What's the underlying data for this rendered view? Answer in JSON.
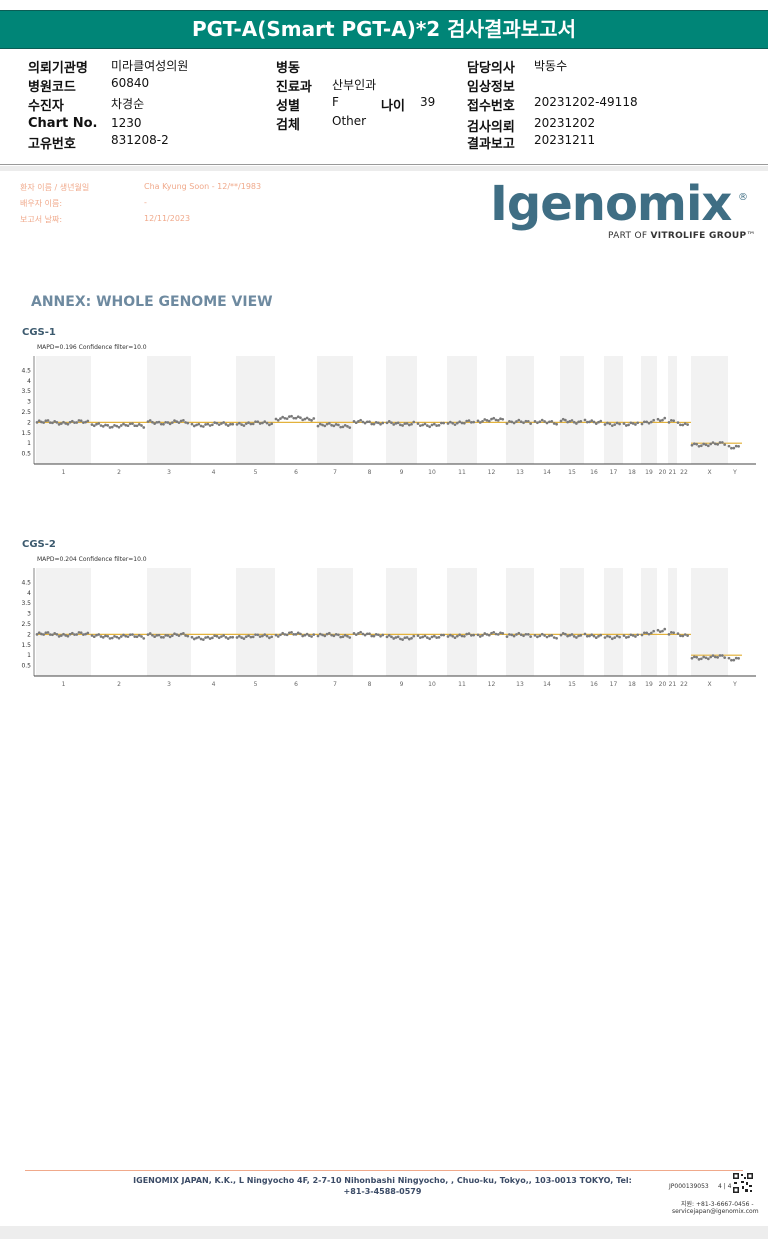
{
  "title": "PGT-A(Smart PGT-A)*2 검사결과보고서",
  "header": {
    "institution_label": "의뢰기관명",
    "institution": "미라클여성의원",
    "hospital_code_label": "병원코드",
    "hospital_code": "60840",
    "patient_label": "수진자",
    "patient": "차경순",
    "chart_label": "Chart No.",
    "chart_no": "1230",
    "unique_label": "고유번호",
    "unique_no": "831208-2",
    "ward_label": "병동",
    "ward": "",
    "dept_label": "진료과",
    "dept": "산부인과",
    "sex_label": "성별",
    "sex": "F",
    "age_label": "나이",
    "age": "39",
    "specimen_label": "검체",
    "specimen": "Other",
    "doctor_label": "담당의사",
    "doctor": "박동수",
    "clinical_label": "임상정보",
    "clinical": "",
    "accession_label": "접수번호",
    "accession": "20231202-49118",
    "request_label": "검사의뢰",
    "request_date": "20231202",
    "report_label": "결과보고",
    "report_date": "20231211"
  },
  "patient_info": {
    "name_label": "환자 이름 / 생년월일",
    "name_value": "Cha Kyung Soon - 12/**/1983",
    "spouse_label": "배우자 이름:",
    "spouse_value": "-",
    "date_label": "보고서 날짜:",
    "date_value": "12/11/2023"
  },
  "logo": {
    "text": "Igenomix",
    "reg": "®",
    "sub_prefix": "PART OF ",
    "sub_bold": "VITROLIFE GROUP",
    "sub_tm": "™"
  },
  "annex_title": "ANNEX: WHOLE GENOME VIEW",
  "colors": {
    "title_bg": "#008577",
    "reference_line": "#e3b23c",
    "data_points": "#7a7a7a",
    "band_shade": "#f2f2f2",
    "logo": "#3f6e84"
  },
  "chart_data": [
    {
      "type": "scatter",
      "title": "CGS-1",
      "subtitle": "MAPD=0.196 Confidence filter=10.0",
      "y_ticks": [
        "0.5",
        "1",
        "1.5",
        "2",
        "2.5",
        "3",
        "3.5",
        "4",
        "4.5"
      ],
      "ylim": [
        0,
        5
      ],
      "categories": [
        "1",
        "2",
        "3",
        "4",
        "5",
        "6",
        "7",
        "8",
        "9",
        "10",
        "11",
        "12",
        "13",
        "14",
        "15",
        "16",
        "17",
        "18",
        "19",
        "20",
        "21",
        "22",
        "X",
        "Y"
      ],
      "copy_number": [
        2.0,
        1.85,
        2.0,
        1.9,
        1.95,
        2.2,
        1.85,
        2.0,
        1.95,
        1.9,
        2.0,
        2.1,
        2.0,
        2.0,
        2.05,
        2.05,
        1.95,
        1.95,
        2.0,
        2.1,
        2.0,
        1.9,
        0.95,
        0.85
      ],
      "reference": [
        2,
        2,
        2,
        2,
        2,
        2,
        2,
        2,
        2,
        2,
        2,
        2,
        2,
        2,
        2,
        2,
        2,
        2,
        2,
        2,
        2,
        2,
        1,
        1
      ]
    },
    {
      "type": "scatter",
      "title": "CGS-2",
      "subtitle": "MAPD=0.204 Confidence filter=10.0",
      "y_ticks": [
        "0.5",
        "1",
        "1.5",
        "2",
        "2.5",
        "3",
        "3.5",
        "4",
        "4.5"
      ],
      "ylim": [
        0,
        5
      ],
      "categories": [
        "1",
        "2",
        "3",
        "4",
        "5",
        "6",
        "7",
        "8",
        "9",
        "10",
        "11",
        "12",
        "13",
        "14",
        "15",
        "16",
        "17",
        "18",
        "19",
        "20",
        "21",
        "22",
        "X",
        "Y"
      ],
      "copy_number": [
        2.0,
        1.9,
        1.95,
        1.85,
        1.9,
        2.0,
        1.95,
        2.0,
        1.85,
        1.9,
        1.95,
        2.0,
        1.95,
        1.9,
        1.95,
        1.95,
        1.9,
        1.95,
        2.05,
        2.15,
        2.0,
        1.95,
        0.9,
        0.85
      ],
      "reference": [
        2,
        2,
        2,
        2,
        2,
        2,
        2,
        2,
        2,
        2,
        2,
        2,
        2,
        2,
        2,
        2,
        2,
        2,
        2,
        2,
        2,
        2,
        1,
        1
      ]
    }
  ],
  "footer": {
    "address": "IGENOMIX JAPAN, K.K., L Ningyocho 4F, 2-7-10 Nihonbashi Ningyocho, , Chuo-ku, Tokyo,, 103-0013 TOKYO, Tel: +81-3-4588-0579",
    "doc_id": "JP000139053",
    "page": "4 | 4",
    "tel": "지원: +81-3-6667-0456 -",
    "email": "servicejapan@igenomix.com"
  }
}
